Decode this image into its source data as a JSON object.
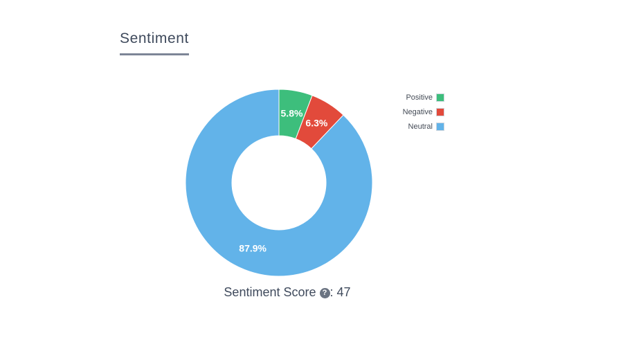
{
  "section_title": "Sentiment",
  "chart_data": {
    "type": "pie",
    "subtype": "donut",
    "categories": [
      "Positive",
      "Negative",
      "Neutral"
    ],
    "values": [
      5.8,
      6.3,
      87.9
    ],
    "labels": [
      "5.8%",
      "6.3%",
      "87.9%"
    ],
    "colors": [
      "#3dbe7c",
      "#e24a3b",
      "#62b3e9"
    ],
    "legend_position": "top-right"
  },
  "score": {
    "label": "Sentiment Score",
    "separator": ":",
    "value": "47",
    "help_icon": "question-circle-icon"
  }
}
